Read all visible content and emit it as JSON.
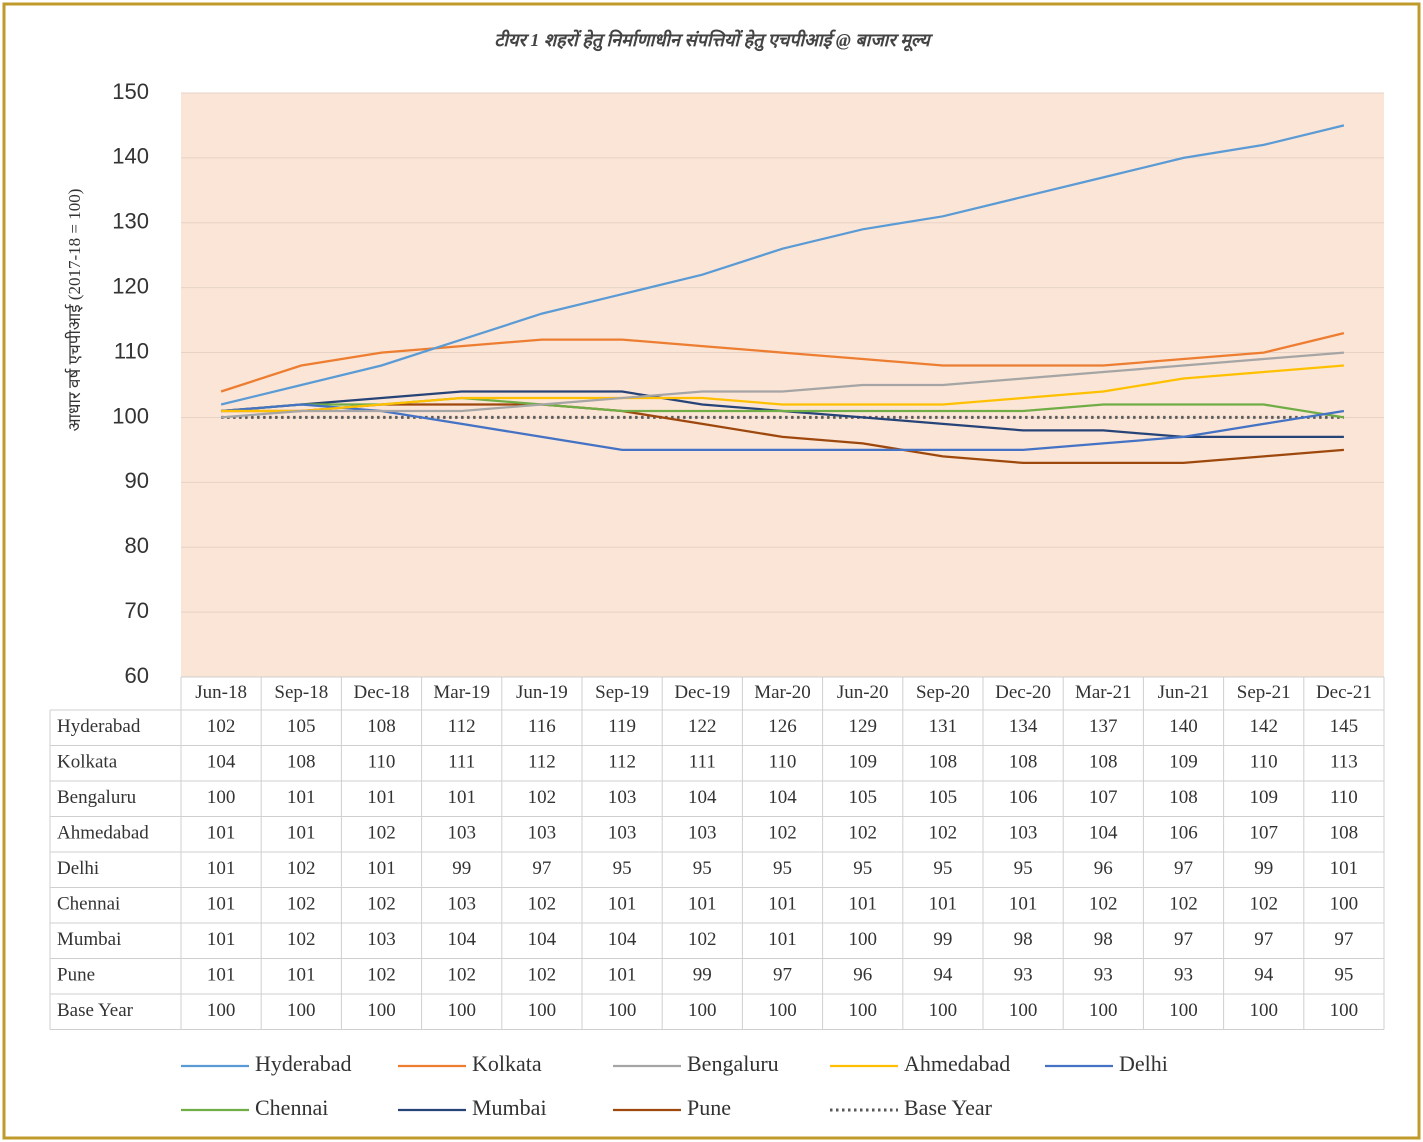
{
  "chart_data": {
    "type": "line",
    "title": "टीयर 1 शहरों हेतु निर्माणाधीन संपत्तियों हेतु एचपीआई @ बाजार मूल्य",
    "y_label": "आधार वर्ष एचपीआई (2017-18 = 100)",
    "categories": [
      "Jun-18",
      "Sep-18",
      "Dec-18",
      "Mar-19",
      "Jun-19",
      "Sep-19",
      "Dec-19",
      "Mar-20",
      "Jun-20",
      "Sep-20",
      "Dec-20",
      "Mar-21",
      "Jun-21",
      "Sep-21",
      "Dec-21"
    ],
    "ylim": [
      60,
      150
    ],
    "yticks": [
      60,
      70,
      80,
      90,
      100,
      110,
      120,
      130,
      140,
      150
    ],
    "grid": true,
    "series": [
      {
        "name": "Hyderabad",
        "color": "#5b9bd5",
        "values": [
          102,
          105,
          108,
          112,
          116,
          119,
          122,
          126,
          129,
          131,
          134,
          137,
          140,
          142,
          145
        ]
      },
      {
        "name": "Kolkata",
        "color": "#ed7d31",
        "values": [
          104,
          108,
          110,
          111,
          112,
          112,
          111,
          110,
          109,
          108,
          108,
          108,
          109,
          110,
          113
        ]
      },
      {
        "name": "Bengaluru",
        "color": "#a5a5a5",
        "values": [
          100,
          101,
          101,
          101,
          102,
          103,
          104,
          104,
          105,
          105,
          106,
          107,
          108,
          109,
          110
        ]
      },
      {
        "name": "Ahmedabad",
        "color": "#ffc000",
        "values": [
          101,
          101,
          102,
          103,
          103,
          103,
          103,
          102,
          102,
          102,
          103,
          104,
          106,
          107,
          108
        ]
      },
      {
        "name": "Delhi",
        "color": "#4472c4",
        "values": [
          101,
          102,
          101,
          99,
          97,
          95,
          95,
          95,
          95,
          95,
          95,
          96,
          97,
          99,
          101
        ]
      },
      {
        "name": "Chennai",
        "color": "#70ad47",
        "values": [
          101,
          102,
          102,
          103,
          102,
          101,
          101,
          101,
          101,
          101,
          101,
          102,
          102,
          102,
          100
        ]
      },
      {
        "name": "Mumbai",
        "color": "#264478",
        "values": [
          101,
          102,
          103,
          104,
          104,
          104,
          102,
          101,
          100,
          99,
          98,
          98,
          97,
          97,
          97
        ]
      },
      {
        "name": "Pune",
        "color": "#9e480e",
        "values": [
          101,
          101,
          102,
          102,
          102,
          101,
          99,
          97,
          96,
          94,
          93,
          93,
          93,
          94,
          95
        ]
      },
      {
        "name": "Base Year",
        "color": "#595959",
        "line_style": "dotted",
        "values": [
          100,
          100,
          100,
          100,
          100,
          100,
          100,
          100,
          100,
          100,
          100,
          100,
          100,
          100,
          100
        ]
      }
    ]
  }
}
